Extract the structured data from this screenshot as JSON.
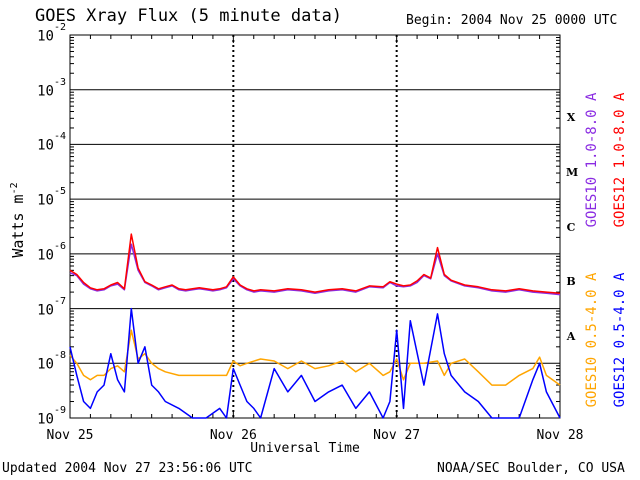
{
  "header": {
    "title": "GOES Xray Flux (5 minute data)",
    "begin": "Begin:  2004 Nov 25 0000 UTC"
  },
  "footer": {
    "updated": "Updated 2004 Nov 27 23:56:06 UTC",
    "credit": "NOAA/SEC Boulder, CO USA"
  },
  "colors": {
    "goes10_long": "#8a2be2",
    "goes12_long": "#ff0000",
    "goes10_short": "#ffa500",
    "goes12_short": "#0000ff"
  },
  "chart_data": {
    "type": "line",
    "title": "GOES Xray Flux (5 minute data)",
    "xlabel": "Universal Time",
    "ylabel": "Watts m",
    "ylabel_sup": "-2",
    "y_scale": "log",
    "ylim": [
      1e-09,
      0.01
    ],
    "xlim": [
      0,
      72
    ],
    "x_unit": "hours since 2004 Nov 25 0000 UTC",
    "x_ticks": [
      {
        "x": 0,
        "label": "Nov 25"
      },
      {
        "x": 24,
        "label": "Nov 26"
      },
      {
        "x": 48,
        "label": "Nov 27"
      },
      {
        "x": 72,
        "label": "Nov 28"
      }
    ],
    "y_ticks": [
      {
        "exp": -2,
        "base": "10",
        "sup": "-2"
      },
      {
        "exp": -3,
        "base": "10",
        "sup": "-3"
      },
      {
        "exp": -4,
        "base": "10",
        "sup": "-4"
      },
      {
        "exp": -5,
        "base": "10",
        "sup": "-5"
      },
      {
        "exp": -6,
        "base": "10",
        "sup": "-6"
      },
      {
        "exp": -7,
        "base": "10",
        "sup": "-7"
      },
      {
        "exp": -8,
        "base": "10",
        "sup": "-8"
      },
      {
        "exp": -9,
        "base": "10",
        "sup": "-9"
      }
    ],
    "flare_classes": [
      {
        "label": "X",
        "exp": -3.5
      },
      {
        "label": "M",
        "exp": -4.5
      },
      {
        "label": "C",
        "exp": -5.5
      },
      {
        "label": "B",
        "exp": -6.5
      },
      {
        "label": "A",
        "exp": -7.5
      }
    ],
    "grid": "horizontal decade lines",
    "series": [
      {
        "name": "GOES10 1.0-8.0 A",
        "color": "#8a2be2",
        "x": [
          0,
          1,
          2,
          3,
          4,
          5,
          6,
          7,
          8,
          9,
          10,
          11,
          12,
          13,
          14,
          15,
          16,
          17,
          18,
          19,
          20,
          21,
          22,
          23,
          24,
          25,
          26,
          27,
          28,
          30,
          32,
          34,
          36,
          38,
          40,
          42,
          44,
          46,
          47,
          48,
          49,
          50,
          51,
          52,
          53,
          54,
          55,
          56,
          58,
          60,
          62,
          64,
          66,
          68,
          70,
          72
        ],
        "y": [
          4.5e-07,
          4e-07,
          2.8e-07,
          2.3e-07,
          2.1e-07,
          2.2e-07,
          2.6e-07,
          2.8e-07,
          2.2e-07,
          1.5e-06,
          5e-07,
          3e-07,
          2.6e-07,
          2.2e-07,
          2.4e-07,
          2.6e-07,
          2.2e-07,
          2.1e-07,
          2.2e-07,
          2.3e-07,
          2.2e-07,
          2.1e-07,
          2.2e-07,
          2.4e-07,
          3.5e-07,
          2.6e-07,
          2.2e-07,
          2e-07,
          2.1e-07,
          2e-07,
          2.2e-07,
          2.1e-07,
          1.9e-07,
          2.1e-07,
          2.2e-07,
          2e-07,
          2.5e-07,
          2.4e-07,
          3e-07,
          2.6e-07,
          2.5e-07,
          2.6e-07,
          3e-07,
          4e-07,
          3.5e-07,
          1e-06,
          4e-07,
          3.2e-07,
          2.6e-07,
          2.4e-07,
          2.1e-07,
          2e-07,
          2.2e-07,
          2e-07,
          1.9e-07,
          1.8e-07
        ]
      },
      {
        "name": "GOES12 1.0-8.0 A",
        "color": "#ff0000",
        "x": [
          0,
          1,
          2,
          3,
          4,
          5,
          6,
          7,
          8,
          9,
          10,
          11,
          12,
          13,
          14,
          15,
          16,
          17,
          18,
          19,
          20,
          21,
          22,
          23,
          24,
          25,
          26,
          27,
          28,
          30,
          32,
          34,
          36,
          38,
          40,
          42,
          44,
          46,
          47,
          48,
          49,
          50,
          51,
          52,
          53,
          54,
          55,
          56,
          58,
          60,
          62,
          64,
          66,
          68,
          70,
          72
        ],
        "y": [
          5e-07,
          4.2e-07,
          3e-07,
          2.4e-07,
          2.2e-07,
          2.3e-07,
          2.7e-07,
          3e-07,
          2.3e-07,
          2.3e-06,
          5.5e-07,
          3.1e-07,
          2.7e-07,
          2.3e-07,
          2.5e-07,
          2.7e-07,
          2.3e-07,
          2.2e-07,
          2.3e-07,
          2.4e-07,
          2.3e-07,
          2.2e-07,
          2.3e-07,
          2.5e-07,
          3.8e-07,
          2.7e-07,
          2.3e-07,
          2.1e-07,
          2.2e-07,
          2.1e-07,
          2.3e-07,
          2.2e-07,
          2e-07,
          2.2e-07,
          2.3e-07,
          2.1e-07,
          2.6e-07,
          2.5e-07,
          3.1e-07,
          2.8e-07,
          2.6e-07,
          2.7e-07,
          3.2e-07,
          4.2e-07,
          3.6e-07,
          1.3e-06,
          4.2e-07,
          3.3e-07,
          2.7e-07,
          2.5e-07,
          2.2e-07,
          2.1e-07,
          2.3e-07,
          2.1e-07,
          2e-07,
          1.9e-07
        ]
      },
      {
        "name": "GOES10 0.5-4.0 A",
        "color": "#ffa500",
        "x": [
          0,
          1,
          2,
          3,
          4,
          5,
          6,
          7,
          8,
          9,
          10,
          11,
          12,
          13,
          14,
          16,
          18,
          20,
          22,
          23,
          24,
          25,
          26,
          28,
          30,
          32,
          34,
          36,
          38,
          40,
          42,
          44,
          46,
          47,
          48,
          49,
          50,
          52,
          54,
          55,
          56,
          58,
          60,
          62,
          64,
          66,
          68,
          69,
          70,
          72
        ],
        "y": [
          1.4e-08,
          1e-08,
          6e-09,
          5e-09,
          6e-09,
          6e-09,
          8e-09,
          9e-09,
          7e-09,
          4e-08,
          1.2e-08,
          1.5e-08,
          1e-08,
          8e-09,
          7e-09,
          6e-09,
          6e-09,
          6e-09,
          6e-09,
          6e-09,
          1.1e-08,
          9e-09,
          1e-08,
          1.2e-08,
          1.1e-08,
          8e-09,
          1.1e-08,
          8e-09,
          9e-09,
          1.1e-08,
          7e-09,
          1e-08,
          6e-09,
          7e-09,
          1.2e-08,
          5e-09,
          1e-08,
          1e-08,
          1.1e-08,
          6e-09,
          1e-08,
          1.2e-08,
          7e-09,
          4e-09,
          4e-09,
          6e-09,
          8e-09,
          1.3e-08,
          6e-09,
          4e-09
        ]
      },
      {
        "name": "GOES12 0.5-4.0 A",
        "color": "#0000ff",
        "x": [
          0,
          1,
          2,
          3,
          4,
          5,
          6,
          7,
          8,
          9,
          10,
          11,
          12,
          13,
          14,
          16,
          18,
          20,
          22,
          23,
          24,
          25,
          26,
          27,
          28,
          30,
          32,
          34,
          36,
          38,
          40,
          42,
          44,
          46,
          47,
          48,
          49,
          50,
          52,
          54,
          55,
          56,
          58,
          60,
          62,
          64,
          66,
          68,
          69,
          70,
          72
        ],
        "y": [
          2e-08,
          6e-09,
          2e-09,
          1.5e-09,
          3e-09,
          4e-09,
          1.5e-08,
          5e-09,
          3e-09,
          1e-07,
          1e-08,
          2e-08,
          4e-09,
          3e-09,
          2e-09,
          1.5e-09,
          1e-09,
          1e-09,
          1.5e-09,
          1e-09,
          8e-09,
          4e-09,
          2e-09,
          1.5e-09,
          1e-09,
          8e-09,
          3e-09,
          6e-09,
          2e-09,
          3e-09,
          4e-09,
          1.5e-09,
          3e-09,
          1e-09,
          2e-09,
          4e-08,
          1.5e-09,
          6e-08,
          4e-09,
          8e-08,
          1.5e-08,
          6e-09,
          3e-09,
          2e-09,
          1e-09,
          1e-09,
          1e-09,
          5e-09,
          1e-08,
          3e-09,
          1e-09
        ]
      }
    ],
    "legend": {
      "placement": "right, vertical text"
    }
  }
}
